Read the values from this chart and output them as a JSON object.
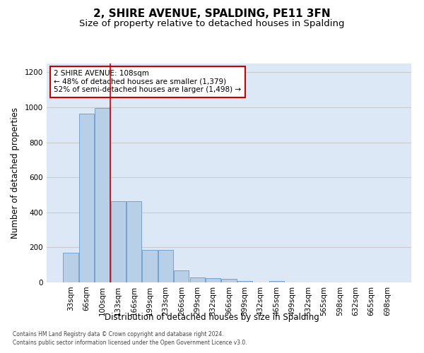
{
  "title": "2, SHIRE AVENUE, SPALDING, PE11 3FN",
  "subtitle": "Size of property relative to detached houses in Spalding",
  "xlabel": "Distribution of detached houses by size in Spalding",
  "ylabel": "Number of detached properties",
  "footnote1": "Contains HM Land Registry data © Crown copyright and database right 2024.",
  "footnote2": "Contains public sector information licensed under the Open Government Licence v3.0.",
  "bar_categories": [
    "33sqm",
    "66sqm",
    "100sqm",
    "133sqm",
    "166sqm",
    "199sqm",
    "233sqm",
    "266sqm",
    "299sqm",
    "332sqm",
    "366sqm",
    "399sqm",
    "432sqm",
    "465sqm",
    "499sqm",
    "532sqm",
    "565sqm",
    "598sqm",
    "632sqm",
    "665sqm",
    "698sqm"
  ],
  "bar_values": [
    170,
    965,
    995,
    465,
    465,
    185,
    185,
    70,
    30,
    25,
    20,
    10,
    0,
    10,
    0,
    0,
    0,
    0,
    0,
    0,
    0
  ],
  "bar_color": "#b8cfe8",
  "bar_edge_color": "#6699cc",
  "annotation_box_text": "2 SHIRE AVENUE: 108sqm\n← 48% of detached houses are smaller (1,379)\n52% of semi-detached houses are larger (1,498) →",
  "annotation_box_color": "#ffffff",
  "annotation_box_edge_color": "#cc0000",
  "vline_color": "#cc0000",
  "ylim": [
    0,
    1250
  ],
  "yticks": [
    0,
    200,
    400,
    600,
    800,
    1000,
    1200
  ],
  "grid_color": "#cccccc",
  "bg_color": "#dce8f5",
  "fig_bg_color": "#ffffff",
  "title_fontsize": 11,
  "subtitle_fontsize": 9.5,
  "xlabel_fontsize": 8.5,
  "ylabel_fontsize": 8.5,
  "tick_fontsize": 7.5,
  "annotation_fontsize": 7.5
}
